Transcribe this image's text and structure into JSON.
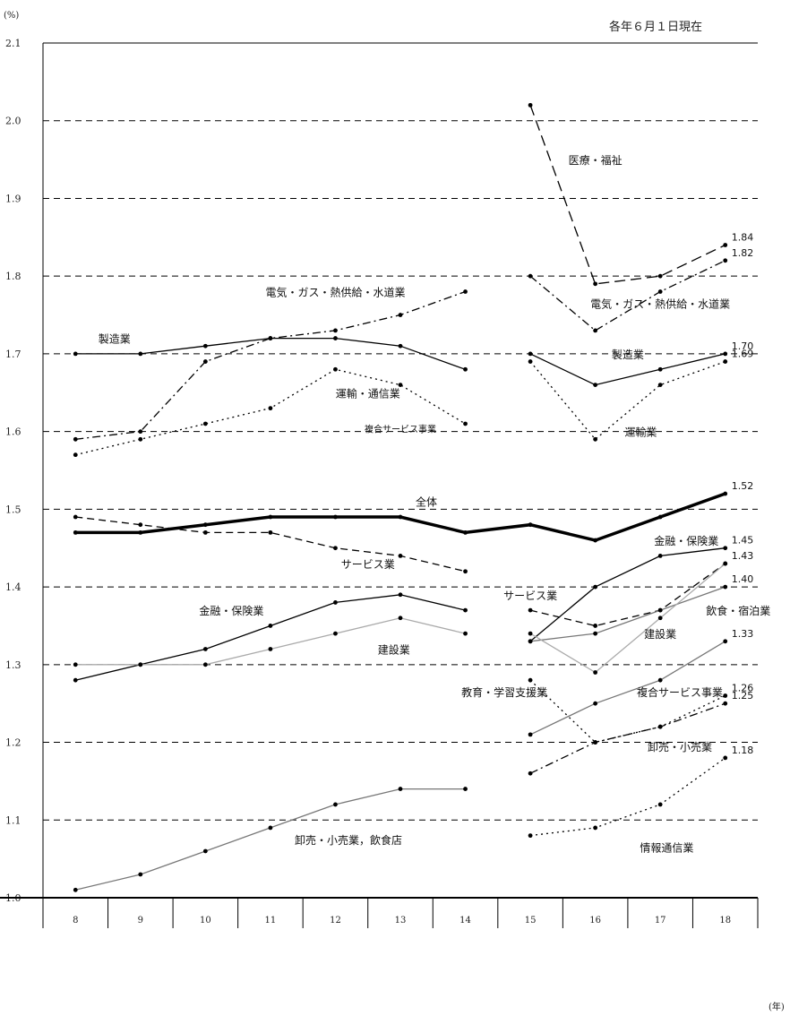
{
  "chart_data": {
    "type": "line",
    "date_note": "各年６月１日現在",
    "y_unit": "(%)",
    "x_unit": "(年)",
    "ylim": [
      1.0,
      2.1
    ],
    "y_ticks": [
      "1.0",
      "1.1",
      "1.2",
      "1.3",
      "1.4",
      "1.5",
      "1.6",
      "1.7",
      "1.8",
      "1.9",
      "2.0",
      "2.1"
    ],
    "x": [
      "8",
      "9",
      "10",
      "11",
      "12",
      "13",
      "14",
      "15",
      "16",
      "17",
      "18"
    ],
    "grid": true,
    "series": [
      {
        "name": "全体",
        "style": "thick",
        "color": "#000000",
        "values": [
          1.47,
          1.47,
          1.48,
          1.49,
          1.49,
          1.49,
          1.47,
          1.48,
          1.46,
          1.49,
          1.52
        ],
        "end_label": "1.52"
      },
      {
        "name": "製造業",
        "style": "solid",
        "color": "#000000",
        "values": [
          1.7,
          1.7,
          1.71,
          1.72,
          1.72,
          1.71,
          1.68,
          null,
          null,
          null,
          null
        ]
      },
      {
        "name": "電気・ガス・熱供給・水道業",
        "style": "dashdot",
        "color": "#000000",
        "values": [
          1.59,
          1.6,
          1.69,
          1.72,
          1.73,
          1.75,
          1.78,
          null,
          null,
          null,
          null
        ]
      },
      {
        "name": "運輸・通信業",
        "style": "dotted",
        "color": "#000000",
        "values": [
          1.57,
          1.59,
          1.61,
          1.63,
          1.68,
          1.66,
          1.61,
          null,
          null,
          null,
          null
        ]
      },
      {
        "name": "サービス業",
        "style": "dashed",
        "color": "#000000",
        "values": [
          1.49,
          1.48,
          1.47,
          1.47,
          1.45,
          1.44,
          1.42,
          null,
          null,
          null,
          null
        ]
      },
      {
        "name": "金融・保険業",
        "style": "solid",
        "color": "#000000",
        "values": [
          1.28,
          1.3,
          1.32,
          1.35,
          1.38,
          1.39,
          1.37,
          null,
          null,
          null,
          null
        ]
      },
      {
        "name": "建設業",
        "style": "solid",
        "color": "#aaaaaa",
        "values": [
          1.3,
          1.3,
          1.3,
          1.32,
          1.34,
          1.36,
          1.34,
          null,
          null,
          null,
          null
        ]
      },
      {
        "name": "卸売・小売業，飲食店",
        "style": "solid",
        "color": "#777777",
        "values": [
          1.01,
          1.03,
          1.06,
          1.09,
          1.12,
          1.14,
          1.14,
          null,
          null,
          null,
          null
        ]
      },
      {
        "name": "医療・福祉",
        "style": "longdash",
        "color": "#000000",
        "values": [
          null,
          null,
          null,
          null,
          null,
          null,
          null,
          2.02,
          1.79,
          1.8,
          1.84
        ],
        "end_label": "1.84"
      },
      {
        "name": "電気・ガス・熱供給・水道業",
        "style": "dashdot",
        "color": "#000000",
        "values": [
          null,
          null,
          null,
          null,
          null,
          null,
          null,
          1.8,
          1.73,
          1.78,
          1.82
        ],
        "end_label": "1.82"
      },
      {
        "name": "製造業",
        "style": "solid",
        "color": "#000000",
        "values": [
          null,
          null,
          null,
          null,
          null,
          null,
          null,
          1.7,
          1.66,
          1.68,
          1.7
        ],
        "end_label": "1.70"
      },
      {
        "name": "運輸業",
        "style": "dotted",
        "color": "#000000",
        "values": [
          null,
          null,
          null,
          null,
          null,
          null,
          null,
          1.69,
          1.59,
          1.66,
          1.69
        ],
        "end_label": "1.69"
      },
      {
        "name": "金融・保険業",
        "style": "solid",
        "color": "#000000",
        "values": [
          null,
          null,
          null,
          null,
          null,
          null,
          null,
          1.33,
          1.4,
          1.44,
          1.45
        ],
        "end_label": "1.45"
      },
      {
        "name": "サービス業",
        "style": "dashed",
        "color": "#000000",
        "values": [
          null,
          null,
          null,
          null,
          null,
          null,
          null,
          1.37,
          1.35,
          1.37,
          1.43
        ],
        "end_label": "1.43"
      },
      {
        "name": "飲食・宿泊業",
        "style": "solid",
        "color": "#777777",
        "values": [
          null,
          null,
          null,
          null,
          null,
          null,
          null,
          1.33,
          1.34,
          1.37,
          1.4
        ],
        "end_label": "1.40"
      },
      {
        "name": "建設業",
        "style": "solid",
        "color": "#aaaaaa",
        "values": [
          null,
          null,
          null,
          null,
          null,
          null,
          null,
          1.34,
          1.29,
          1.36,
          1.43
        ]
      },
      {
        "name": "複合サービス事業",
        "style": "solid",
        "color": "#777777",
        "values": [
          null,
          null,
          null,
          null,
          null,
          null,
          null,
          1.21,
          1.25,
          1.28,
          1.33
        ],
        "end_label": "1.33"
      },
      {
        "name": "教育・学習支援業",
        "style": "dotted",
        "color": "#000000",
        "values": [
          null,
          null,
          null,
          null,
          null,
          null,
          null,
          1.28,
          1.2,
          1.22,
          1.26
        ],
        "end_label": "1.26"
      },
      {
        "name": "卸売・小売業",
        "style": "dashdot",
        "color": "#000000",
        "values": [
          null,
          null,
          null,
          null,
          null,
          null,
          null,
          1.16,
          1.2,
          1.22,
          1.25
        ],
        "end_label": "1.25"
      },
      {
        "name": "情報通信業",
        "style": "dotted",
        "color": "#000000",
        "values": [
          null,
          null,
          null,
          null,
          null,
          null,
          null,
          1.08,
          1.09,
          1.12,
          1.18
        ],
        "end_label": "1.18"
      }
    ],
    "annotations": [
      {
        "text": "医療・福祉",
        "x": "16",
        "y": 1.95
      },
      {
        "text": "電気・ガス・熱供給・水道業",
        "x": "12",
        "y": 1.78
      },
      {
        "text": "電気・ガス・熱供給・水道業",
        "x": "17",
        "y": 1.765
      },
      {
        "text": "製造業",
        "x": "8.6",
        "y": 1.72
      },
      {
        "text": "製造業",
        "x": "16.5",
        "y": 1.7
      },
      {
        "text": "運輸・通信業",
        "x": "12.5",
        "y": 1.65
      },
      {
        "text": "複合サービス事業",
        "x": "13",
        "y": 1.605,
        "small": true
      },
      {
        "text": "運輸業",
        "x": "16.7",
        "y": 1.6
      },
      {
        "text": "全体",
        "x": "13.4",
        "y": 1.51
      },
      {
        "text": "サービス業",
        "x": "12.5",
        "y": 1.43
      },
      {
        "text": "サービス業",
        "x": "15",
        "y": 1.39
      },
      {
        "text": "金融・保険業",
        "x": "17.4",
        "y": 1.46
      },
      {
        "text": "金融・保険業",
        "x": "10.4",
        "y": 1.37
      },
      {
        "text": "飲食・宿泊業",
        "x": "18.2",
        "y": 1.37
      },
      {
        "text": "建設業",
        "x": "12.9",
        "y": 1.32
      },
      {
        "text": "建設業",
        "x": "17",
        "y": 1.34
      },
      {
        "text": "教育・学習支援業",
        "x": "14.6",
        "y": 1.265
      },
      {
        "text": "複合サービス事業",
        "x": "17.3",
        "y": 1.265
      },
      {
        "text": "卸売・小売業",
        "x": "17.3",
        "y": 1.195
      },
      {
        "text": "卸売・小売業，飲食店",
        "x": "12.2",
        "y": 1.075
      },
      {
        "text": "情報通信業",
        "x": "17.1",
        "y": 1.065
      }
    ]
  }
}
